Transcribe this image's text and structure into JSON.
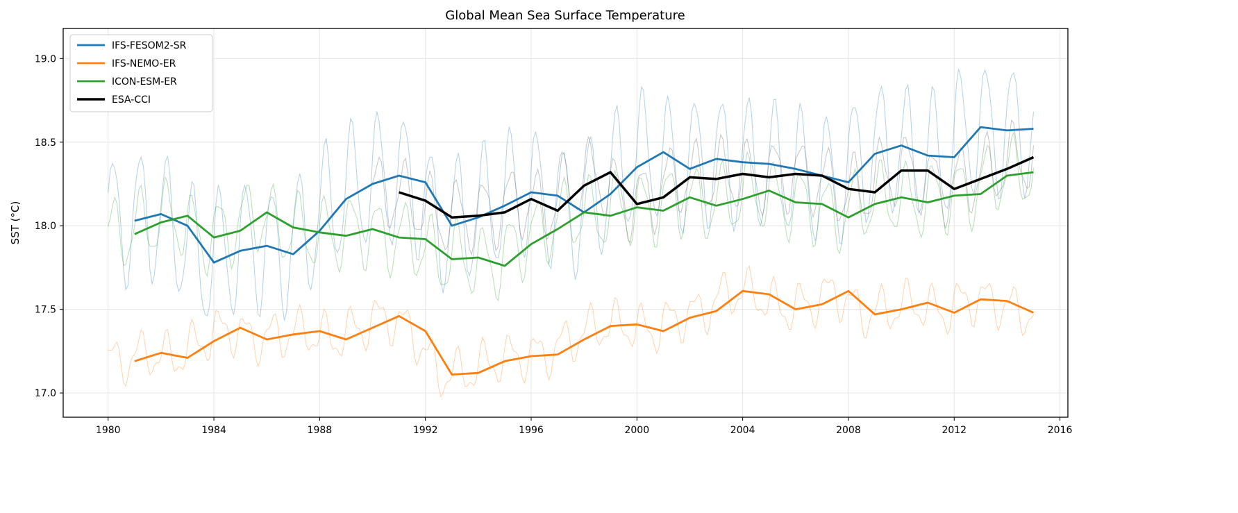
{
  "chart_data": {
    "type": "line",
    "title": "Global Mean Sea Surface Temperature",
    "xlabel": "",
    "ylabel": "SST (°C)",
    "xlim": [
      1978.3,
      2016.3
    ],
    "ylim": [
      16.855,
      19.18
    ],
    "xticks": [
      1980,
      1984,
      1988,
      1992,
      1996,
      2000,
      2004,
      2008,
      2012,
      2016
    ],
    "yticks": [
      "17.0",
      "17.5",
      "18.0",
      "18.5",
      "19.0"
    ],
    "grid": true,
    "legend_position": "top-left",
    "series": [
      {
        "name": "IFS-FESOM2-SR",
        "color": "#1f77b4",
        "annual_x": [
          1981,
          1982,
          1983,
          1984,
          1985,
          1986,
          1987,
          1988,
          1989,
          1990,
          1991,
          1992,
          1993,
          1994,
          1995,
          1996,
          1997,
          1998,
          1999,
          2000,
          2001,
          2002,
          2003,
          2004,
          2005,
          2006,
          2007,
          2008,
          2009,
          2010,
          2011,
          2012,
          2013,
          2014,
          2015
        ],
        "annual_y": [
          18.03,
          18.07,
          18.0,
          17.78,
          17.85,
          17.88,
          17.83,
          17.97,
          18.16,
          18.25,
          18.3,
          18.26,
          18.0,
          18.05,
          18.12,
          18.2,
          18.18,
          18.08,
          18.19,
          18.35,
          18.44,
          18.34,
          18.4,
          18.38,
          18.37,
          18.34,
          18.3,
          18.26,
          18.43,
          18.48,
          18.42,
          18.41,
          18.59,
          18.57,
          18.58
        ],
        "monthly_range": [
          1980,
          2015
        ],
        "seasonal_amplitude": 0.38
      },
      {
        "name": "IFS-NEMO-ER",
        "color": "#ff7f0e",
        "annual_x": [
          1981,
          1982,
          1983,
          1984,
          1985,
          1986,
          1987,
          1988,
          1989,
          1990,
          1991,
          1992,
          1993,
          1994,
          1995,
          1996,
          1997,
          1998,
          1999,
          2000,
          2001,
          2002,
          2003,
          2004,
          2005,
          2006,
          2007,
          2008,
          2009,
          2010,
          2011,
          2012,
          2013,
          2014,
          2015
        ],
        "annual_y": [
          17.19,
          17.24,
          17.21,
          17.31,
          17.39,
          17.32,
          17.35,
          17.37,
          17.32,
          17.39,
          17.46,
          17.37,
          17.11,
          17.12,
          17.19,
          17.22,
          17.23,
          17.32,
          17.4,
          17.41,
          17.37,
          17.45,
          17.49,
          17.61,
          17.59,
          17.5,
          17.53,
          17.61,
          17.47,
          17.5,
          17.54,
          17.48,
          17.56,
          17.55,
          17.48
        ],
        "monthly_range": [
          1980,
          2015
        ],
        "seasonal_amplitude": 0.12
      },
      {
        "name": "ICON-ESM-ER",
        "color": "#2ca02c",
        "annual_x": [
          1981,
          1982,
          1983,
          1984,
          1985,
          1986,
          1987,
          1988,
          1989,
          1990,
          1991,
          1992,
          1993,
          1994,
          1995,
          1996,
          1997,
          1998,
          1999,
          2000,
          2001,
          2002,
          2003,
          2004,
          2005,
          2006,
          2007,
          2008,
          2009,
          2010,
          2011,
          2012,
          2013,
          2014,
          2015
        ],
        "annual_y": [
          17.95,
          18.02,
          18.06,
          17.93,
          17.97,
          18.08,
          17.99,
          17.96,
          17.94,
          17.98,
          17.93,
          17.92,
          17.8,
          17.81,
          17.76,
          17.89,
          17.98,
          18.08,
          18.06,
          18.11,
          18.09,
          18.17,
          18.12,
          18.16,
          18.21,
          18.14,
          18.13,
          18.05,
          18.13,
          18.17,
          18.14,
          18.18,
          18.19,
          18.3,
          18.32
        ],
        "monthly_range": [
          1980,
          2015
        ],
        "seasonal_amplitude": 0.2
      },
      {
        "name": "ESA-CCI",
        "color": "#000000",
        "annual_x": [
          1991,
          1992,
          1993,
          1994,
          1995,
          1996,
          1997,
          1998,
          1999,
          2000,
          2001,
          2002,
          2003,
          2004,
          2005,
          2006,
          2007,
          2008,
          2009,
          2010,
          2011,
          2012,
          2013,
          2014,
          2015
        ],
        "annual_y": [
          18.2,
          18.15,
          18.05,
          18.06,
          18.08,
          18.16,
          18.09,
          18.24,
          18.32,
          18.13,
          18.17,
          18.29,
          18.28,
          18.31,
          18.29,
          18.31,
          18.3,
          18.22,
          18.2,
          18.33,
          18.33,
          18.22,
          18.28,
          18.34,
          18.41
        ],
        "monthly_range": [
          1990,
          2015
        ],
        "seasonal_amplitude": 0.2
      }
    ]
  }
}
